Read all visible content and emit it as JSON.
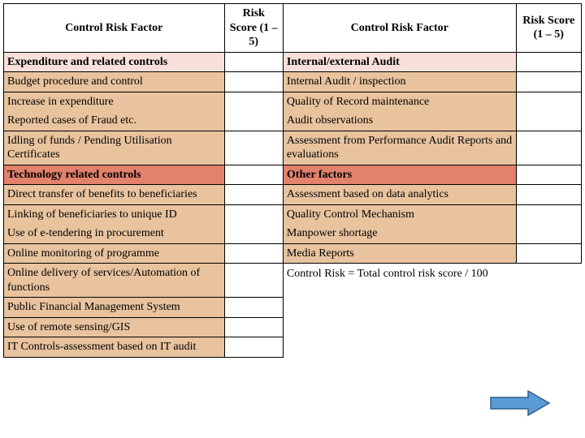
{
  "colors": {
    "border": "#000000",
    "section_pink": "#f7e0d9",
    "section_tan": "#e8c39e",
    "section_red": "#e2816c",
    "arrow_fill": "#5b9bd5",
    "arrow_stroke": "#2e5f8a"
  },
  "header": {
    "left_factor": "Control Risk Factor",
    "left_score": "Risk Score (1 – 5)",
    "right_factor": "Control Risk Factor",
    "right_score": "Risk Score (1 – 5)"
  },
  "rows": [
    {
      "l": "Expenditure and related controls",
      "r": "Internal/external Audit",
      "cls": "section-a bg-pink"
    },
    {
      "l": "Budget procedure and control",
      "r": "Internal Audit / inspection",
      "cls": "bg-tan"
    },
    {
      "l": "Increase in expenditure",
      "r": "Quality of Record maintenance",
      "cls": "bg-tan nb-bottom"
    },
    {
      "l": "Reported cases of Fraud etc.",
      "r": "Audit observations",
      "cls": "bg-tan nb-top"
    },
    {
      "l": "Idling of funds / Pending Utilisation Certificates",
      "r": "Assessment from Performance Audit Reports and evaluations",
      "cls": "bg-tan"
    },
    {
      "l": "Technology related controls",
      "r": "Other factors",
      "cls": "section-a bg-red"
    },
    {
      "l": "Direct transfer of benefits to beneficiaries",
      "r": "Assessment based on  data analytics",
      "cls": "bg-tan"
    },
    {
      "l": "Linking of beneficiaries to unique ID",
      "r": "Quality Control Mechanism",
      "cls": "bg-tan nb-bottom"
    },
    {
      "l": "Use of e-tendering in procurement",
      "r": "Manpower shortage",
      "cls": "bg-tan nb-top"
    },
    {
      "l": "Online monitoring of programme",
      "r": "Media Reports",
      "cls": "bg-tan"
    }
  ],
  "tail": [
    "Online delivery of services/Automation of functions",
    "Public Financial Management System",
    "Use of remote sensing/GIS",
    "IT Controls-assessment based on IT audit"
  ],
  "formula": "Control Risk  = Total control risk score / 100"
}
